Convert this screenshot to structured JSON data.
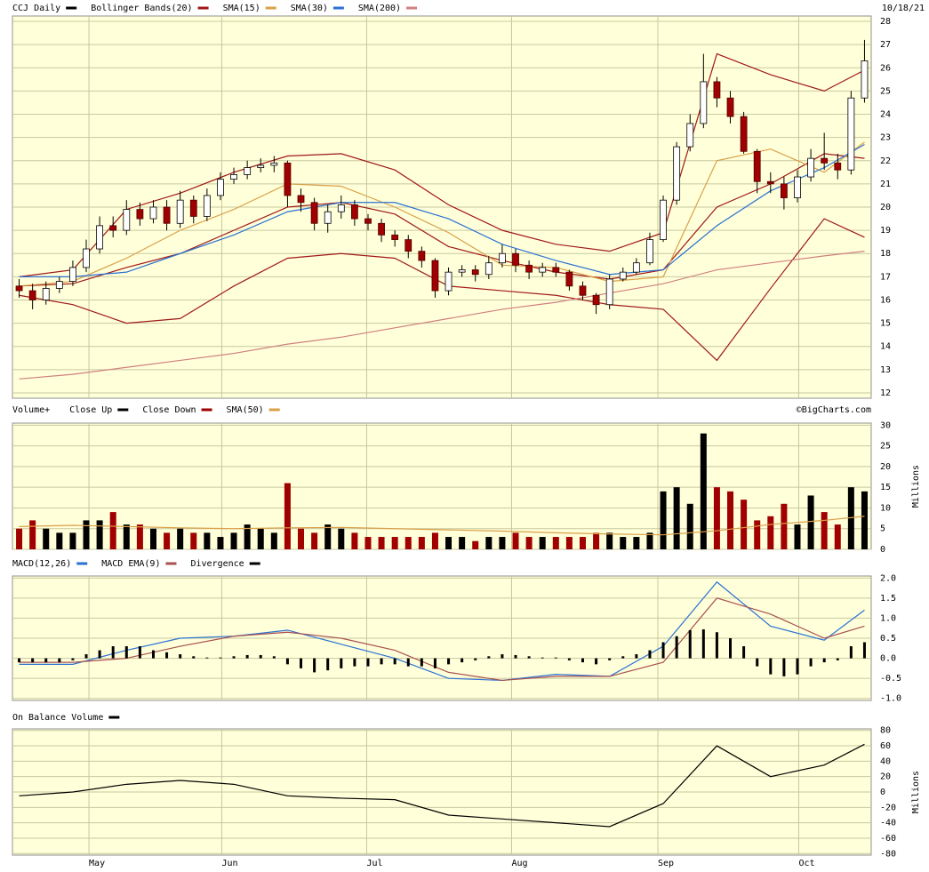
{
  "chart_data": [
    {
      "type": "candlestick",
      "title": "CCJ Daily",
      "date": "10/18/21",
      "color": "#000000",
      "up_color": "#ffffff",
      "down_color": "#a00000",
      "ylim": [
        11.77,
        28.23
      ],
      "yticks": [
        12,
        13,
        14,
        15,
        16,
        17,
        18,
        19,
        20,
        21,
        22,
        23,
        24,
        25,
        26,
        27,
        28
      ],
      "grid": true,
      "open": [
        16.6,
        16.4,
        16.0,
        16.5,
        16.8,
        17.4,
        18.2,
        19.2,
        19.0,
        19.9,
        19.5,
        20.0,
        19.3,
        20.3,
        19.6,
        20.5,
        21.2,
        21.4,
        21.7,
        21.8,
        21.9,
        20.5,
        20.2,
        19.3,
        19.8,
        20.1,
        19.5,
        19.3,
        18.8,
        18.6,
        18.1,
        17.7,
        16.4,
        17.2,
        17.3,
        17.1,
        17.6,
        18.0,
        17.5,
        17.2,
        17.4,
        17.2,
        16.6,
        16.2,
        15.8,
        16.9,
        17.2,
        17.6,
        18.6,
        20.3,
        22.6,
        23.6,
        25.4,
        24.7,
        23.9,
        22.4,
        21.1,
        21.0,
        20.4,
        21.3,
        22.1,
        21.9,
        21.6,
        24.7
      ],
      "high": [
        16.9,
        16.7,
        16.8,
        17.0,
        17.7,
        18.6,
        19.6,
        19.6,
        20.3,
        20.2,
        20.3,
        20.3,
        20.7,
        20.5,
        20.8,
        21.5,
        21.7,
        22.0,
        22.1,
        22.2,
        22.0,
        20.8,
        20.4,
        20.1,
        20.5,
        20.3,
        19.7,
        19.5,
        19.0,
        18.8,
        18.3,
        17.8,
        17.4,
        17.5,
        17.5,
        17.9,
        18.4,
        18.2,
        17.7,
        17.6,
        17.6,
        17.3,
        16.8,
        16.3,
        17.1,
        17.4,
        17.8,
        18.9,
        20.5,
        22.8,
        24.0,
        26.6,
        25.6,
        25.0,
        24.1,
        22.5,
        21.5,
        21.3,
        21.6,
        22.5,
        23.2,
        22.3,
        25.0,
        27.2
      ],
      "low": [
        16.1,
        15.6,
        15.8,
        16.3,
        16.6,
        17.2,
        18.0,
        18.7,
        18.8,
        19.2,
        19.3,
        19.0,
        19.1,
        19.3,
        19.4,
        20.3,
        21.0,
        21.2,
        21.5,
        21.5,
        20.0,
        19.8,
        19.0,
        18.9,
        19.5,
        19.2,
        19.0,
        18.5,
        18.3,
        17.8,
        17.4,
        16.1,
        16.2,
        17.0,
        16.8,
        16.9,
        17.4,
        17.2,
        16.9,
        17.0,
        17.0,
        16.4,
        16.0,
        15.4,
        15.6,
        16.8,
        17.1,
        17.5,
        18.5,
        20.1,
        22.4,
        23.4,
        24.3,
        23.6,
        22.3,
        20.6,
        20.6,
        19.9,
        20.2,
        21.1,
        21.6,
        21.2,
        21.4,
        24.5
      ],
      "close": [
        16.4,
        16.0,
        16.5,
        16.8,
        17.4,
        18.2,
        19.2,
        19.0,
        19.9,
        19.5,
        20.0,
        19.3,
        20.3,
        19.6,
        20.5,
        21.2,
        21.4,
        21.7,
        21.8,
        21.9,
        20.5,
        20.2,
        19.3,
        19.8,
        20.1,
        19.5,
        19.3,
        18.8,
        18.6,
        18.1,
        17.7,
        16.4,
        17.2,
        17.3,
        17.1,
        17.6,
        18.0,
        17.5,
        17.2,
        17.4,
        17.2,
        16.6,
        16.2,
        15.8,
        16.9,
        17.2,
        17.6,
        18.6,
        20.3,
        22.6,
        23.6,
        25.4,
        24.7,
        23.9,
        22.4,
        21.1,
        21.0,
        20.4,
        21.3,
        22.1,
        21.9,
        21.6,
        24.7,
        26.3
      ],
      "line_x": [
        0,
        4,
        8,
        12,
        16,
        20,
        24,
        28,
        32,
        36,
        40,
        44,
        48,
        52,
        56,
        60,
        63
      ],
      "series": [
        {
          "name": "Bollinger Bands(20)",
          "color": "#a01818",
          "upper": [
            17.0,
            17.3,
            19.9,
            20.6,
            21.5,
            22.2,
            22.3,
            21.6,
            20.1,
            19.0,
            18.4,
            18.1,
            18.9,
            26.6,
            25.7,
            25.0,
            25.9
          ],
          "middle": [
            16.6,
            16.7,
            17.4,
            18.0,
            19.0,
            20.0,
            20.2,
            19.7,
            18.3,
            17.7,
            17.2,
            16.9,
            17.3,
            20.0,
            21.0,
            22.3,
            22.1
          ],
          "lower": [
            16.2,
            15.8,
            15.0,
            15.2,
            16.6,
            17.8,
            18.0,
            17.8,
            16.6,
            16.4,
            16.2,
            15.8,
            15.6,
            13.4,
            16.5,
            19.5,
            18.7
          ]
        },
        {
          "name": "SMA(15)",
          "color": "#d9a04a",
          "values": [
            16.6,
            16.8,
            17.8,
            19.0,
            19.9,
            21.0,
            20.9,
            20.0,
            18.9,
            17.5,
            17.4,
            16.8,
            17.0,
            22.0,
            22.5,
            21.5,
            22.8
          ]
        },
        {
          "name": "SMA(30)",
          "color": "#2a72d4",
          "values": [
            17.0,
            17.0,
            17.2,
            18.0,
            18.8,
            19.8,
            20.2,
            20.2,
            19.5,
            18.4,
            17.7,
            17.1,
            17.3,
            19.2,
            20.7,
            21.7,
            22.7
          ]
        },
        {
          "name": "SMA(200)",
          "color": "#d08080",
          "values": [
            12.6,
            12.8,
            13.1,
            13.4,
            13.7,
            14.1,
            14.4,
            14.8,
            15.2,
            15.6,
            15.9,
            16.3,
            16.7,
            17.3,
            17.6,
            17.9,
            18.1
          ]
        }
      ]
    },
    {
      "type": "volume",
      "title": "Volume+",
      "up_label": "Close Up",
      "down_label": "Close Down",
      "up_color": "#000000",
      "down_color": "#a00000",
      "credit": "©BigCharts.com",
      "ylabel": "Millions",
      "ylim": [
        0,
        30.5
      ],
      "yticks": [
        0,
        5,
        10,
        15,
        20,
        25,
        30
      ],
      "grid": true,
      "values": [
        5,
        7,
        5,
        4,
        4,
        7,
        7,
        9,
        6,
        6,
        5,
        4,
        5,
        4,
        4,
        3,
        4,
        6,
        5,
        4,
        16,
        5,
        4,
        6,
        5,
        4,
        3,
        3,
        3,
        3,
        3,
        4,
        3,
        3,
        2,
        3,
        3,
        4,
        3,
        3,
        3,
        3,
        3,
        4,
        4,
        3,
        3,
        4,
        14,
        15,
        11,
        28,
        15,
        14,
        12,
        7,
        8,
        11,
        6,
        13,
        9,
        6,
        15,
        14
      ],
      "series": [
        {
          "name": "SMA(50)",
          "color": "#d9a04a",
          "values": [
            5.5,
            5.8,
            5.5,
            5.2,
            5.0,
            5.2,
            5.3,
            5.0,
            4.7,
            4.4,
            4.0,
            3.7,
            3.5,
            4.5,
            6.0,
            7.0,
            8.0
          ]
        }
      ]
    },
    {
      "type": "macd",
      "ylim": [
        -1.05,
        2.05
      ],
      "yticks": [
        {
          "value": -1,
          "label": "-1.0"
        },
        -0.5,
        {
          "value": 0,
          "label": "0.0"
        },
        0.5,
        {
          "value": 1,
          "label": "1.0"
        },
        1.5,
        {
          "value": 2,
          "label": "2.0"
        }
      ],
      "grid": true,
      "series": [
        {
          "name": "MACD(12,26)",
          "color": "#2a72d4",
          "values": [
            -0.15,
            -0.15,
            0.2,
            0.5,
            0.55,
            0.7,
            0.35,
            0.0,
            -0.5,
            -0.55,
            -0.4,
            -0.45,
            0.3,
            1.9,
            0.8,
            0.45,
            1.2
          ]
        },
        {
          "name": "MACD EMA(9)",
          "color": "#a85050",
          "values": [
            -0.1,
            -0.1,
            0.0,
            0.3,
            0.55,
            0.65,
            0.5,
            0.2,
            -0.35,
            -0.55,
            -0.45,
            -0.45,
            -0.1,
            1.5,
            1.1,
            0.5,
            0.8
          ]
        },
        {
          "name": "Divergence",
          "color": "#000000",
          "values": [
            -0.1,
            -0.1,
            -0.1,
            -0.1,
            -0.05,
            0.1,
            0.2,
            0.3,
            0.3,
            0.3,
            0.2,
            0.15,
            0.1,
            0.05,
            0.02,
            0.02,
            0.05,
            0.08,
            0.08,
            0.05,
            -0.15,
            -0.25,
            -0.35,
            -0.3,
            -0.25,
            -0.2,
            -0.2,
            -0.15,
            -0.15,
            -0.2,
            -0.2,
            -0.25,
            -0.15,
            -0.1,
            -0.05,
            0.05,
            0.1,
            0.08,
            0.05,
            0.02,
            0.02,
            -0.05,
            -0.1,
            -0.15,
            -0.05,
            0.05,
            0.1,
            0.2,
            0.4,
            0.55,
            0.7,
            0.72,
            0.65,
            0.5,
            0.3,
            -0.2,
            -0.4,
            -0.45,
            -0.4,
            -0.2,
            -0.1,
            -0.05,
            0.3,
            0.4
          ]
        }
      ]
    },
    {
      "type": "obv",
      "ylabel": "Millions",
      "ylim": [
        -82,
        82
      ],
      "yticks": [
        -80,
        -60,
        -40,
        -20,
        0,
        20,
        40,
        60,
        80
      ],
      "grid": true,
      "xlim": [
        -0.5,
        63.5
      ],
      "xticks": [
        {
          "value": 5.2,
          "label": "May"
        },
        {
          "value": 15.1,
          "label": "Jun"
        },
        {
          "value": 25.9,
          "label": "Jul"
        },
        {
          "value": 36.7,
          "label": "Aug"
        },
        {
          "value": 47.6,
          "label": "Sep"
        },
        {
          "value": 58.1,
          "label": "Oct"
        }
      ],
      "series": [
        {
          "name": "On Balance Volume",
          "color": "#000000",
          "values": [
            -5,
            0,
            10,
            15,
            10,
            -5,
            -8,
            -10,
            -30,
            -35,
            -40,
            -45,
            -15,
            60,
            20,
            35,
            62
          ]
        }
      ]
    }
  ]
}
